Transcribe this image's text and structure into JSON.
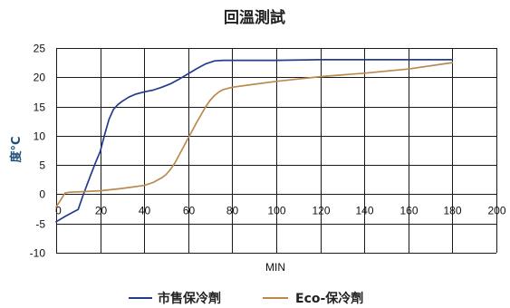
{
  "chart_data": {
    "type": "line",
    "title": "回溫測試",
    "xlabel": "MIN",
    "ylabel": "度°C",
    "xlim": [
      0,
      200
    ],
    "ylim": [
      -10,
      25
    ],
    "x_ticks": [
      0,
      20,
      40,
      60,
      80,
      100,
      120,
      140,
      160,
      180,
      200
    ],
    "y_ticks": [
      -10,
      -5,
      0,
      5,
      10,
      15,
      20,
      25
    ],
    "grid": true,
    "legend": "bottom",
    "series": [
      {
        "name": "市售保冷劑",
        "color": "#233C8E",
        "x": [
          0,
          4,
          8,
          10,
          12,
          14,
          16,
          18,
          20,
          22,
          24,
          26,
          28,
          30,
          33,
          36,
          40,
          44,
          48,
          52,
          56,
          60,
          64,
          68,
          72,
          76,
          80,
          100,
          120,
          140,
          160,
          180
        ],
        "y": [
          -4.7,
          -3.8,
          -3.0,
          -2.6,
          -0.4,
          1.6,
          3.6,
          5.5,
          7.3,
          10.2,
          12.8,
          14.5,
          15.3,
          15.9,
          16.6,
          17.1,
          17.5,
          17.8,
          18.3,
          18.9,
          19.7,
          20.6,
          21.5,
          22.3,
          22.8,
          22.9,
          22.9,
          22.9,
          23.0,
          23.0,
          23.0,
          23.0
        ]
      },
      {
        "name": "Eco-保冷劑",
        "color": "#B98A4E",
        "x": [
          0,
          2,
          4,
          6,
          10,
          20,
          30,
          40,
          44,
          48,
          50,
          52,
          54,
          56,
          58,
          60,
          62,
          64,
          66,
          68,
          70,
          72,
          74,
          76,
          78,
          80,
          90,
          100,
          110,
          120,
          140,
          160,
          180
        ],
        "y": [
          -2.2,
          -1.0,
          0.2,
          0.35,
          0.4,
          0.6,
          1.0,
          1.5,
          2.0,
          2.8,
          3.4,
          4.3,
          5.4,
          6.8,
          8.2,
          9.6,
          11.0,
          12.4,
          13.7,
          15.0,
          16.1,
          16.9,
          17.5,
          17.9,
          18.1,
          18.3,
          18.8,
          19.3,
          19.7,
          20.1,
          20.7,
          21.4,
          22.5
        ]
      }
    ]
  }
}
